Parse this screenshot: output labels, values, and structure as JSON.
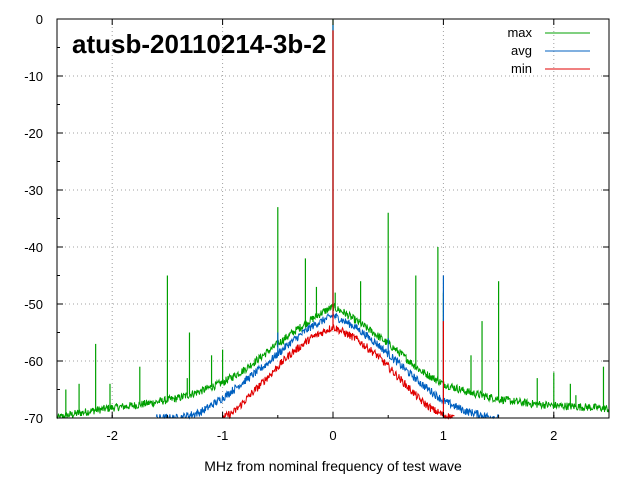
{
  "chart_data": {
    "type": "line",
    "title": "atusb-20110214-3b-2",
    "xlabel": "MHz from nominal frequency of test wave",
    "ylabel": "",
    "xlim": [
      -2.5,
      2.5
    ],
    "ylim": [
      -70,
      0
    ],
    "x_ticks": [
      -2,
      -1,
      0,
      1,
      2
    ],
    "x_tick_labels": [
      "-2",
      "-1",
      "0",
      "1",
      "2"
    ],
    "y_ticks": [
      0,
      -10,
      -20,
      -30,
      -40,
      -50,
      -60,
      -70
    ],
    "y_tick_labels": [
      "0",
      "-10",
      "-20",
      "-30",
      "-40",
      "-50",
      "-60",
      "-70"
    ],
    "grid": true,
    "legend_position": "top-right",
    "series": [
      {
        "name": "max",
        "color": "#00a000",
        "envelope": {
          "x": [
            -2.5,
            -2.4,
            -2.2,
            -2.0,
            -1.8,
            -1.6,
            -1.4,
            -1.2,
            -1.0,
            -0.8,
            -0.6,
            -0.4,
            -0.2,
            -0.1,
            -0.05,
            0.0,
            0.05,
            0.1,
            0.2,
            0.4,
            0.6,
            0.8,
            1.0,
            1.2,
            1.4,
            1.6,
            1.8,
            2.0,
            2.2,
            2.4,
            2.5
          ],
          "y": [
            -70,
            -69.5,
            -68.8,
            -68.2,
            -67.8,
            -67.2,
            -66.5,
            -65.3,
            -63.8,
            -61.5,
            -58.5,
            -55.5,
            -52.8,
            -51.5,
            -51.0,
            -50.5,
            -51.0,
            -51.5,
            -52.8,
            -55.5,
            -58.5,
            -61.8,
            -64.0,
            -65.3,
            -66.3,
            -67.0,
            -67.5,
            -67.8,
            -68.0,
            -68.2,
            -68.4
          ]
        },
        "spurs": [
          {
            "x": -2.42,
            "y": -65
          },
          {
            "x": -2.3,
            "y": -64
          },
          {
            "x": -2.15,
            "y": -57
          },
          {
            "x": -2.02,
            "y": -64
          },
          {
            "x": -1.75,
            "y": -61
          },
          {
            "x": -1.5,
            "y": -45
          },
          {
            "x": -1.3,
            "y": -55
          },
          {
            "x": -1.32,
            "y": -63
          },
          {
            "x": -1.1,
            "y": -59
          },
          {
            "x": -1.0,
            "y": -58
          },
          {
            "x": -0.5,
            "y": -33
          },
          {
            "x": -0.25,
            "y": -42
          },
          {
            "x": -0.15,
            "y": -47
          },
          {
            "x": 0.0,
            "y": 0
          },
          {
            "x": 0.02,
            "y": -48
          },
          {
            "x": 0.25,
            "y": -46
          },
          {
            "x": 0.5,
            "y": -34
          },
          {
            "x": 0.75,
            "y": -45
          },
          {
            "x": 0.95,
            "y": -40
          },
          {
            "x": 1.0,
            "y": -48
          },
          {
            "x": 1.25,
            "y": -59
          },
          {
            "x": 1.35,
            "y": -53
          },
          {
            "x": 1.5,
            "y": -46
          },
          {
            "x": 1.85,
            "y": -63
          },
          {
            "x": 2.0,
            "y": -62
          },
          {
            "x": 2.15,
            "y": -64
          },
          {
            "x": 2.2,
            "y": -66
          },
          {
            "x": 2.45,
            "y": -61
          }
        ]
      },
      {
        "name": "avg",
        "color": "#0060c0",
        "envelope": {
          "x": [
            -1.6,
            -1.4,
            -1.2,
            -1.0,
            -0.8,
            -0.6,
            -0.4,
            -0.2,
            -0.1,
            -0.05,
            0.0,
            0.05,
            0.1,
            0.2,
            0.4,
            0.6,
            0.8,
            1.0,
            1.2,
            1.4,
            1.5
          ],
          "y": [
            -70,
            -70,
            -69.0,
            -66.5,
            -63.5,
            -60.5,
            -57.0,
            -54.0,
            -53.0,
            -52.5,
            -52.0,
            -52.5,
            -53.0,
            -54.0,
            -57.0,
            -60.5,
            -64.0,
            -67.0,
            -68.8,
            -69.7,
            -70
          ]
        },
        "spurs": [
          {
            "x": -0.5,
            "y": -55
          },
          {
            "x": 0.0,
            "y": -1
          },
          {
            "x": 0.5,
            "y": -56
          },
          {
            "x": 1.0,
            "y": -45
          },
          {
            "x": 1.5,
            "y": -70
          }
        ]
      },
      {
        "name": "min",
        "color": "#e00000",
        "envelope": {
          "x": [
            -1.0,
            -0.9,
            -0.8,
            -0.6,
            -0.4,
            -0.2,
            -0.1,
            -0.05,
            0.0,
            0.05,
            0.1,
            0.2,
            0.4,
            0.6,
            0.8,
            0.9,
            1.0,
            1.1
          ],
          "y": [
            -70,
            -69.0,
            -67.0,
            -63.0,
            -59.0,
            -56.0,
            -55.0,
            -54.5,
            -54.0,
            -54.5,
            -55.0,
            -56.0,
            -59.0,
            -63.0,
            -67.0,
            -68.5,
            -69.5,
            -70
          ]
        },
        "spurs": [
          {
            "x": 0.0,
            "y": -2
          },
          {
            "x": 1.0,
            "y": -53
          }
        ]
      }
    ]
  }
}
